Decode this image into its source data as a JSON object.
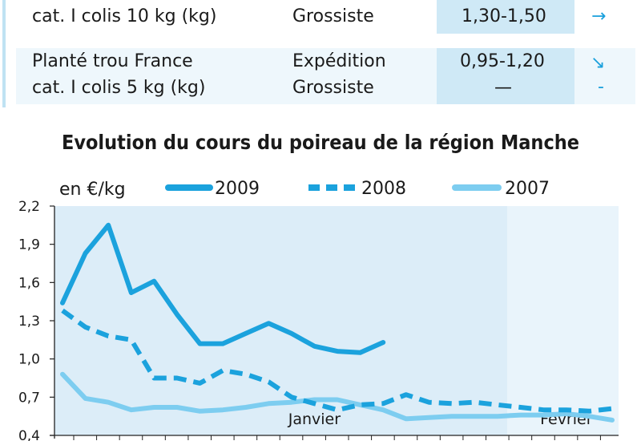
{
  "table": {
    "rows": [
      {
        "product_lines": [
          "cat. I colis 10 kg (kg)"
        ],
        "stage_lines": [
          "Grossiste"
        ],
        "price_lines": [
          "1,30-1,50"
        ],
        "trend_lines": [
          "right-arrow-icon"
        ]
      },
      {
        "product_lines": [
          "Planté trou France",
          "cat. I colis 5 kg (kg)"
        ],
        "stage_lines": [
          "Expédition",
          "Grossiste"
        ],
        "price_lines": [
          "0,95-1,20",
          "—"
        ],
        "trend_lines": [
          "down-right-arrow-icon",
          "dash-icon"
        ]
      }
    ]
  },
  "chart_data": {
    "type": "line",
    "title": "Evolution du cours du poireau de la région Manche",
    "ylabel": "en €/kg",
    "ylim": [
      0.4,
      2.2
    ],
    "yticks": [
      "2,2",
      "1,9",
      "1,6",
      "1,3",
      "1,0",
      "0,7",
      "0,4"
    ],
    "yticks_values": [
      2.2,
      1.9,
      1.6,
      1.3,
      1.0,
      0.7,
      0.4
    ],
    "x_points": 25,
    "month_labels": [
      {
        "label": "Janvier",
        "at": 11
      },
      {
        "label": "Février",
        "at": 22
      }
    ],
    "legend_position": "top",
    "grid": false,
    "series": [
      {
        "name": "2009",
        "style": "solid",
        "color": "#1ba2dd",
        "values": [
          1.44,
          1.83,
          2.05,
          1.52,
          1.61,
          1.35,
          1.12,
          1.12,
          1.2,
          1.28,
          1.2,
          1.1,
          1.06,
          1.05,
          1.13
        ]
      },
      {
        "name": "2008",
        "style": "dashed",
        "color": "#1ba2dd",
        "values": [
          1.38,
          1.25,
          1.18,
          1.15,
          0.85,
          0.85,
          0.81,
          0.91,
          0.88,
          0.82,
          0.7,
          0.65,
          0.6,
          0.64,
          0.65,
          0.72,
          0.66,
          0.65,
          0.66,
          0.64,
          0.62,
          0.6,
          0.6,
          0.59,
          0.61
        ]
      },
      {
        "name": "2007",
        "style": "solid",
        "color": "#7dcdf0",
        "values": [
          0.88,
          0.69,
          0.66,
          0.6,
          0.62,
          0.62,
          0.59,
          0.6,
          0.62,
          0.65,
          0.66,
          0.68,
          0.68,
          0.64,
          0.6,
          0.53,
          0.54,
          0.55,
          0.55,
          0.55,
          0.56,
          0.56,
          0.57,
          0.55,
          0.52
        ]
      }
    ]
  },
  "colors": {
    "accent": "#1ba2dd",
    "light_series": "#7dcdf0",
    "plot_bg": "#dcedf8",
    "plot_bg_right": "#e9f4fb",
    "table_band": "#cfe9f6"
  }
}
